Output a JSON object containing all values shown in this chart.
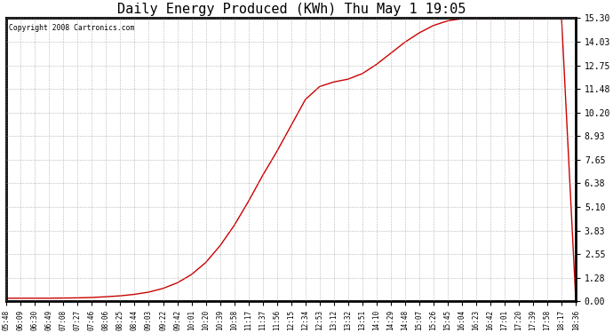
{
  "title": "Daily Energy Produced (KWh) Thu May 1 19:05",
  "copyright_text": "Copyright 2008 Cartronics.com",
  "line_color": "#cc0000",
  "background_color": "#ffffff",
  "plot_bg_color": "#ffffff",
  "border_color": "#000000",
  "grid_color": "#999999",
  "title_fontsize": 11,
  "ytick_labels": [
    "0.00",
    "1.28",
    "2.55",
    "3.83",
    "5.10",
    "6.38",
    "7.65",
    "8.93",
    "10.20",
    "11.48",
    "12.75",
    "14.03",
    "15.30"
  ],
  "ytick_values": [
    0.0,
    1.28,
    2.55,
    3.83,
    5.1,
    6.38,
    7.65,
    8.93,
    10.2,
    11.48,
    12.75,
    14.03,
    15.3
  ],
  "ymax": 15.3,
  "ymin": 0.0,
  "xtick_labels": [
    "05:48",
    "06:09",
    "06:30",
    "06:49",
    "07:08",
    "07:27",
    "07:46",
    "08:06",
    "08:25",
    "08:44",
    "09:03",
    "09:22",
    "09:42",
    "10:01",
    "10:20",
    "10:39",
    "10:58",
    "11:17",
    "11:37",
    "11:56",
    "12:15",
    "12:34",
    "12:53",
    "13:12",
    "13:32",
    "13:51",
    "14:10",
    "14:29",
    "14:48",
    "15:07",
    "15:26",
    "15:45",
    "16:04",
    "16:23",
    "16:42",
    "17:01",
    "17:20",
    "17:39",
    "17:58",
    "18:17",
    "18:36"
  ],
  "ydata": [
    0.17,
    0.17,
    0.17,
    0.17,
    0.18,
    0.19,
    0.21,
    0.25,
    0.3,
    0.38,
    0.5,
    0.7,
    1.0,
    1.45,
    2.1,
    3.0,
    4.1,
    5.4,
    6.8,
    8.1,
    9.5,
    10.9,
    11.6,
    11.85,
    12.0,
    12.3,
    12.8,
    13.4,
    14.0,
    14.5,
    14.9,
    15.15,
    15.27,
    15.28,
    15.28,
    15.28,
    15.28,
    15.28,
    15.28,
    15.28,
    0.05
  ],
  "figwidth": 6.9,
  "figheight": 3.75,
  "dpi": 100
}
